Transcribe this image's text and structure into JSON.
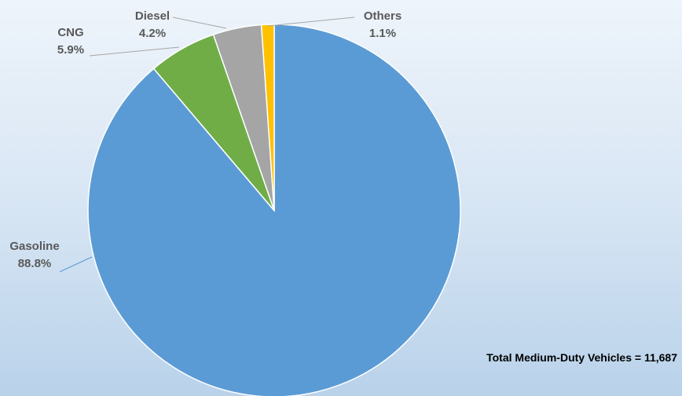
{
  "chart_data": {
    "type": "pie",
    "categories": [
      "Gasoline",
      "CNG",
      "Diesel",
      "Others"
    ],
    "values": [
      88.8,
      5.9,
      4.2,
      1.1
    ],
    "value_labels": [
      "88.8%",
      "5.9%",
      "4.2%",
      "1.1%"
    ],
    "colors": [
      "#5b9bd5",
      "#70ad47",
      "#a5a5a5",
      "#ffc000"
    ],
    "annotation": "Total Medium-Duty Vehicles = 11,687"
  }
}
